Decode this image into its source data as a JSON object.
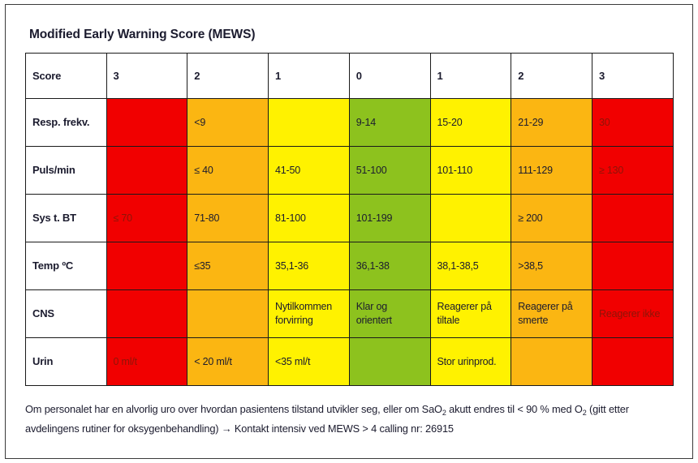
{
  "title": "Modified Early Warning Score (MEWS)",
  "colors": {
    "red": "#F10000",
    "orange": "#FBB612",
    "yellow": "#FFF200",
    "green": "#8DC21E",
    "red_cell_text": "#8E1408",
    "text": "#1B1B2E"
  },
  "table": {
    "headers": [
      "Score",
      "3",
      "2",
      "1",
      "0",
      "1",
      "2",
      "3"
    ],
    "rows": [
      {
        "label": "Resp. frekv.",
        "cells": [
          {
            "text": "",
            "color": "red"
          },
          {
            "text": "<9",
            "color": "orange"
          },
          {
            "text": "",
            "color": "yellow"
          },
          {
            "text": "9-14",
            "color": "green"
          },
          {
            "text": "15-20",
            "color": "yellow"
          },
          {
            "text": "21-29",
            "color": "orange"
          },
          {
            "text": "30",
            "color": "red"
          }
        ]
      },
      {
        "label": "Puls/min",
        "cells": [
          {
            "text": "",
            "color": "red"
          },
          {
            "text": "≤ 40",
            "color": "orange"
          },
          {
            "text": "41-50",
            "color": "yellow"
          },
          {
            "text": "51-100",
            "color": "green"
          },
          {
            "text": "101-110",
            "color": "yellow"
          },
          {
            "text": "111-129",
            "color": "orange"
          },
          {
            "text": "≥ 130",
            "color": "red"
          }
        ]
      },
      {
        "label": "Sys t. BT",
        "cells": [
          {
            "text": "≤ 70",
            "color": "red"
          },
          {
            "text": "71-80",
            "color": "orange"
          },
          {
            "text": "81-100",
            "color": "yellow"
          },
          {
            "text": "101-199",
            "color": "green"
          },
          {
            "text": "",
            "color": "yellow"
          },
          {
            "text": "≥ 200",
            "color": "orange"
          },
          {
            "text": "",
            "color": "red"
          }
        ]
      },
      {
        "label": "Temp ºC",
        "cells": [
          {
            "text": "",
            "color": "red"
          },
          {
            "text": "≤35",
            "color": "orange"
          },
          {
            "text": "35,1-36",
            "color": "yellow"
          },
          {
            "text": "36,1-38",
            "color": "green"
          },
          {
            "text": "38,1-38,5",
            "color": "yellow"
          },
          {
            "text": ">38,5",
            "color": "orange"
          },
          {
            "text": "",
            "color": "red"
          }
        ]
      },
      {
        "label": "CNS",
        "cells": [
          {
            "text": "",
            "color": "red"
          },
          {
            "text": "",
            "color": "orange"
          },
          {
            "text": "Nytilkommen forvirring",
            "color": "yellow"
          },
          {
            "text": "Klar og orientert",
            "color": "green"
          },
          {
            "text": "Reagerer på tiltale",
            "color": "yellow"
          },
          {
            "text": "Reagerer på smerte",
            "color": "orange"
          },
          {
            "text": "Reagerer ikke",
            "color": "red"
          }
        ]
      },
      {
        "label": "Urin",
        "cells": [
          {
            "text": "0 ml/t",
            "color": "red"
          },
          {
            "text": "< 20 ml/t",
            "color": "orange"
          },
          {
            "text": "<35 ml/t",
            "color": "yellow"
          },
          {
            "text": "",
            "color": "green"
          },
          {
            "text": "Stor urinprod.",
            "color": "yellow"
          },
          {
            "text": "",
            "color": "orange"
          },
          {
            "text": "",
            "color": "red"
          }
        ]
      }
    ]
  },
  "footer": {
    "lines": [
      [
        {
          "t": "Om personalet har en alvorlig uro over hvordan pasientens tilstand utvikler seg, eller om SaO"
        },
        {
          "t": "2",
          "sub": true
        },
        {
          "t": " akutt endres til < 90 % med O"
        },
        {
          "t": "2",
          "sub": true
        },
        {
          "t": " (gitt etter"
        }
      ],
      [
        {
          "t": "avdelingens rutiner for oksygenbehandling) → Kontakt intensiv ved MEWS > 4 calling nr: 26915"
        }
      ]
    ]
  }
}
